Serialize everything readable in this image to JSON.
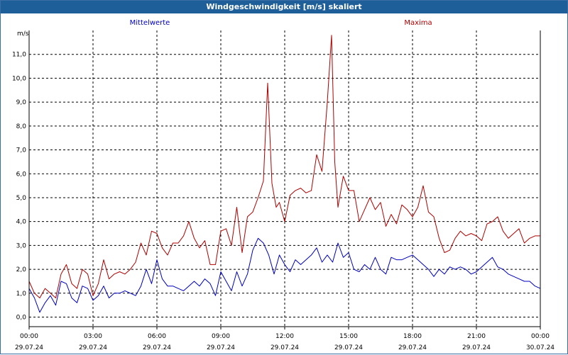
{
  "window": {
    "title": "Windgeschwindigkeit [m/s] skaliert"
  },
  "chart_data": {
    "type": "line",
    "title": "Windgeschwindigkeit [m/s] skaliert",
    "ylabel": "m/s",
    "ylim": [
      -0.4,
      12.0
    ],
    "yticks": [
      0.0,
      1.0,
      2.0,
      3.0,
      4.0,
      5.0,
      6.0,
      7.0,
      8.0,
      9.0,
      10.0,
      11.0
    ],
    "ytick_labels": [
      "0,0",
      "1,0",
      "2,0",
      "3,0",
      "4,0",
      "5,0",
      "6,0",
      "7,0",
      "8,0",
      "9,0",
      "10,0",
      "11,0"
    ],
    "xlim": [
      0,
      24
    ],
    "xticks": [
      0,
      3,
      6,
      9,
      12,
      15,
      18,
      21,
      24
    ],
    "xtick_time_labels": [
      "00:00",
      "03:00",
      "06:00",
      "09:00",
      "12:00",
      "15:00",
      "18:00",
      "21:00",
      "00:00"
    ],
    "xtick_date_labels": [
      "29.07.24",
      "29.07.24",
      "29.07.24",
      "29.07.24",
      "29.07.24",
      "29.07.24",
      "29.07.24",
      "29.07.24",
      "30.07.24"
    ],
    "grid": true,
    "series": [
      {
        "name": "Mittelwerte",
        "color": "#0000c0",
        "x": [
          0,
          0.25,
          0.5,
          0.75,
          1,
          1.25,
          1.5,
          1.75,
          2,
          2.25,
          2.5,
          2.75,
          3,
          3.25,
          3.5,
          3.75,
          4,
          4.25,
          4.5,
          4.75,
          5,
          5.25,
          5.5,
          5.75,
          6,
          6.25,
          6.5,
          6.75,
          7,
          7.25,
          7.5,
          7.75,
          8,
          8.25,
          8.5,
          8.75,
          9,
          9.25,
          9.5,
          9.75,
          10,
          10.25,
          10.5,
          10.75,
          11,
          11.25,
          11.5,
          11.75,
          12,
          12.25,
          12.5,
          12.75,
          13,
          13.25,
          13.5,
          13.75,
          14,
          14.25,
          14.5,
          14.75,
          15,
          15.25,
          15.5,
          15.75,
          16,
          16.25,
          16.5,
          16.75,
          17,
          17.25,
          17.5,
          17.75,
          18,
          18.25,
          18.5,
          18.75,
          19,
          19.25,
          19.5,
          19.75,
          20,
          20.25,
          20.5,
          20.75,
          21,
          21.25,
          21.5,
          21.75,
          22,
          22.25,
          22.5,
          22.75,
          23,
          23.25,
          23.5,
          23.75,
          24
        ],
        "values": [
          1.2,
          0.8,
          0.2,
          0.6,
          0.9,
          0.5,
          1.5,
          1.4,
          0.8,
          0.6,
          1.3,
          1.2,
          0.7,
          0.9,
          1.3,
          0.8,
          1.0,
          1.0,
          1.1,
          1.0,
          0.9,
          1.3,
          2.0,
          1.4,
          2.4,
          1.6,
          1.3,
          1.3,
          1.2,
          1.1,
          1.3,
          1.5,
          1.3,
          1.6,
          1.4,
          0.9,
          1.9,
          1.5,
          1.1,
          1.9,
          1.3,
          1.8,
          2.8,
          3.3,
          3.1,
          2.6,
          1.8,
          2.6,
          2.2,
          1.9,
          2.4,
          2.2,
          2.4,
          2.6,
          2.9,
          2.3,
          2.6,
          2.3,
          3.1,
          2.5,
          2.7,
          2.0,
          1.9,
          2.2,
          2.0,
          2.5,
          2.0,
          1.8,
          2.5,
          2.4,
          2.4,
          2.5,
          2.6,
          2.4,
          2.2,
          2.0,
          1.7,
          2.0,
          1.8,
          2.1,
          2.0,
          2.1,
          2.0,
          1.8,
          1.9,
          2.1,
          2.3,
          2.5,
          2.1,
          2.0,
          1.8,
          1.7,
          1.6,
          1.5,
          1.5,
          1.3,
          1.2
        ]
      },
      {
        "name": "Maxima",
        "color": "#b00000",
        "x": [
          0,
          0.25,
          0.5,
          0.75,
          1,
          1.25,
          1.5,
          1.75,
          2,
          2.25,
          2.5,
          2.75,
          3,
          3.25,
          3.5,
          3.75,
          4,
          4.25,
          4.5,
          4.75,
          5,
          5.25,
          5.5,
          5.75,
          6,
          6.25,
          6.5,
          6.75,
          7,
          7.25,
          7.5,
          7.75,
          8,
          8.25,
          8.5,
          8.75,
          9,
          9.25,
          9.5,
          9.75,
          10,
          10.25,
          10.5,
          10.75,
          11,
          11.2,
          11.4,
          11.6,
          11.75,
          12,
          12.25,
          12.5,
          12.75,
          13,
          13.25,
          13.5,
          13.75,
          14,
          14.2,
          14.35,
          14.5,
          14.75,
          15,
          15.25,
          15.5,
          15.75,
          16,
          16.25,
          16.5,
          16.75,
          17,
          17.25,
          17.5,
          17.75,
          18,
          18.25,
          18.5,
          18.75,
          19,
          19.25,
          19.5,
          19.75,
          20,
          20.25,
          20.5,
          20.75,
          21,
          21.25,
          21.5,
          21.75,
          22,
          22.25,
          22.5,
          22.75,
          23,
          23.25,
          23.5,
          23.75,
          24
        ],
        "values": [
          1.5,
          1.0,
          0.8,
          1.2,
          1.0,
          0.8,
          1.8,
          2.2,
          1.4,
          1.2,
          2.0,
          1.8,
          0.9,
          1.4,
          2.4,
          1.6,
          1.8,
          1.9,
          1.8,
          2.0,
          2.3,
          3.1,
          2.6,
          3.6,
          3.5,
          2.9,
          2.6,
          3.1,
          3.1,
          3.4,
          4.0,
          3.3,
          2.9,
          3.2,
          2.2,
          2.2,
          3.6,
          3.7,
          3.0,
          4.6,
          2.7,
          4.2,
          4.4,
          5.0,
          5.7,
          9.8,
          5.6,
          4.6,
          4.8,
          4.0,
          5.1,
          5.3,
          5.4,
          5.2,
          5.3,
          6.8,
          6.1,
          9.0,
          11.8,
          6.5,
          4.6,
          5.9,
          5.3,
          5.3,
          4.0,
          4.5,
          5.0,
          4.5,
          4.8,
          3.8,
          4.3,
          3.9,
          4.7,
          4.5,
          4.2,
          4.6,
          5.5,
          4.4,
          4.2,
          3.3,
          2.7,
          2.8,
          3.3,
          3.6,
          3.4,
          3.5,
          3.4,
          3.2,
          3.9,
          4.0,
          4.2,
          3.6,
          3.3,
          3.5,
          3.7,
          3.1,
          3.3,
          3.4,
          3.4
        ]
      }
    ]
  }
}
